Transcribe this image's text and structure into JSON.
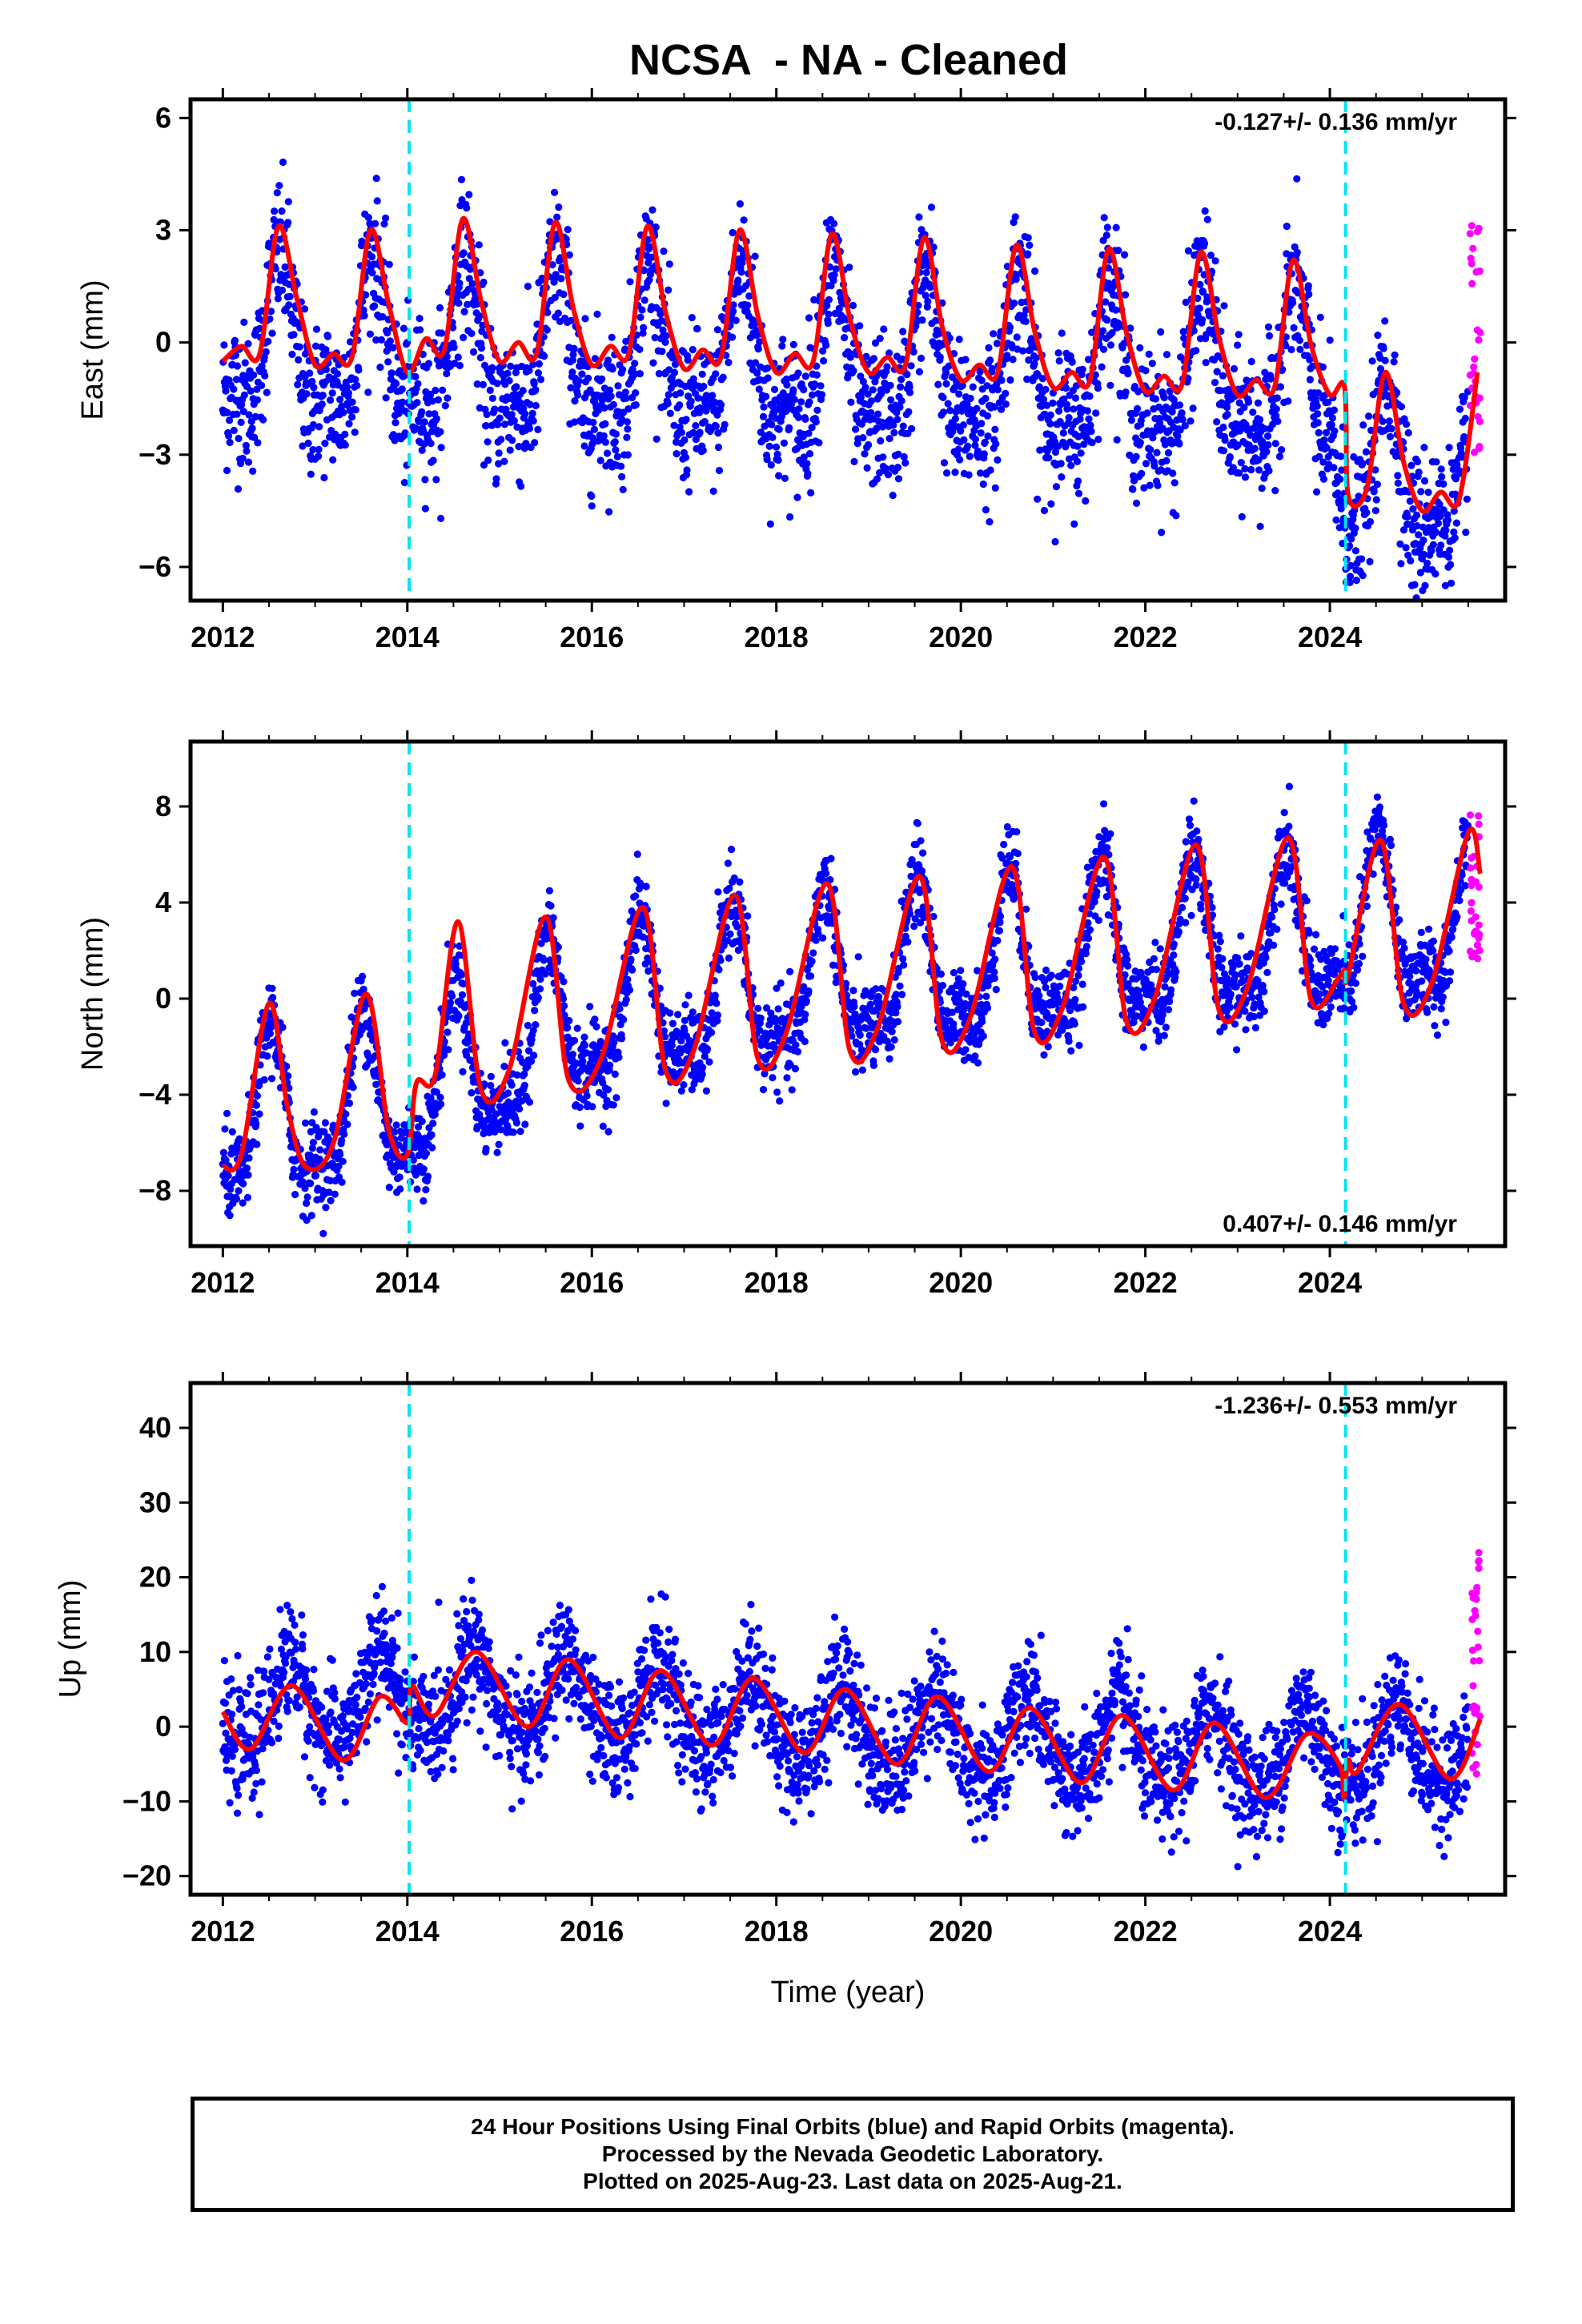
{
  "title": "NCSA  - NA - Cleaned",
  "caption": {
    "line1": "24 Hour Positions Using Final Orbits (blue) and Rapid Orbits (magenta).",
    "line2": "Processed by the Nevada Geodetic Laboratory.",
    "line3": "Plotted on 2025-Aug-23. Last data on 2025-Aug-21."
  },
  "colors": {
    "final_orbits": "#0000ff",
    "rapid_orbits": "#ff00ff",
    "model_fit": "#ff0000",
    "event_lines": "#00e5ee"
  },
  "chart_data": [
    {
      "type": "scatter",
      "ylabel": "East (mm)",
      "xlim": [
        2011.65,
        2025.9
      ],
      "ylim": [
        -6.9,
        6.5
      ],
      "xticks": [
        "2012",
        "2014",
        "2016",
        "2018",
        "2020",
        "2022",
        "2024"
      ],
      "yticks": [
        "6",
        "3",
        "0",
        "−3",
        "−6"
      ],
      "ytick_values": [
        6,
        3,
        0,
        -3,
        -6
      ],
      "annotation": "-0.127+/- 0.136 mm/yr",
      "annotation_position": "top-right",
      "event_lines": [
        2014.02,
        2024.17
      ],
      "model": {
        "name": "model fit",
        "x": [
          2012.0,
          2012.2,
          2012.4,
          2012.6,
          2012.8,
          2013.0,
          2013.2,
          2013.4,
          2013.6,
          2013.8,
          2014.0,
          2014.2,
          2014.4,
          2014.6,
          2014.8,
          2015.0,
          2015.2,
          2015.4,
          2015.6,
          2015.8,
          2016.0,
          2016.2,
          2016.4,
          2016.6,
          2016.8,
          2017.0,
          2017.2,
          2017.4,
          2017.6,
          2017.8,
          2018.0,
          2018.2,
          2018.4,
          2018.6,
          2018.8,
          2019.0,
          2019.2,
          2019.4,
          2019.6,
          2019.8,
          2020.0,
          2020.2,
          2020.4,
          2020.6,
          2020.8,
          2021.0,
          2021.2,
          2021.4,
          2021.6,
          2021.8,
          2022.0,
          2022.2,
          2022.4,
          2022.6,
          2022.8,
          2023.0,
          2023.2,
          2023.4,
          2023.6,
          2023.8,
          2024.0,
          2024.16,
          2024.2,
          2024.4,
          2024.6,
          2024.8,
          2025.0,
          2025.2,
          2025.4,
          2025.6
        ],
        "y": [
          -0.5,
          -0.1,
          -0.3,
          3.1,
          1.2,
          -0.6,
          -0.3,
          -0.4,
          3.0,
          1.0,
          -0.8,
          0.1,
          -0.2,
          3.3,
          1.1,
          -0.5,
          0.0,
          -0.3,
          3.2,
          0.9,
          -0.6,
          -0.1,
          -0.3,
          3.1,
          0.8,
          -0.7,
          -0.2,
          -0.4,
          3.0,
          0.7,
          -0.8,
          -0.3,
          -0.5,
          2.9,
          0.6,
          -0.8,
          -0.4,
          -0.6,
          2.8,
          0.4,
          -1.0,
          -0.6,
          -0.8,
          2.6,
          0.3,
          -1.2,
          -0.8,
          -1.0,
          2.5,
          0.2,
          -1.3,
          -0.9,
          -1.1,
          2.4,
          0.1,
          -1.4,
          -1.0,
          -1.2,
          2.2,
          -0.1,
          -1.4,
          -1.2,
          -4.1,
          -3.9,
          -0.8,
          -3.2,
          -4.5,
          -4.0,
          -4.2,
          -0.8
        ]
      },
      "series": [
        {
          "name": "Final Orbits",
          "color": "#0000ff",
          "x_range": [
            2012.0,
            2025.5
          ],
          "amplitude": 1.85,
          "noise": 1.0,
          "base": [
            [
              2012.0,
              -0.2
            ],
            [
              2024.0,
              -1.2
            ],
            [
              2024.16,
              -3.8
            ],
            [
              2025.6,
              -3.6
            ]
          ],
          "phase": 0.62,
          "secondary": 0.45
        },
        {
          "name": "Rapid Orbits",
          "color": "#ff00ff",
          "x_range": [
            2025.52,
            2025.63
          ],
          "values_range": [
            -3.0,
            3.3
          ]
        }
      ]
    },
    {
      "type": "scatter",
      "ylabel": "North (mm)",
      "xlim": [
        2011.65,
        2025.9
      ],
      "ylim": [
        -10.3,
        10.7
      ],
      "xticks": [
        "2012",
        "2014",
        "2016",
        "2018",
        "2020",
        "2022",
        "2024"
      ],
      "yticks": [
        "8",
        "4",
        "0",
        "−4",
        "−8"
      ],
      "ytick_values": [
        8,
        4,
        0,
        -4,
        -8
      ],
      "annotation": "0.407+/- 0.146 mm/yr",
      "annotation_position": "bottom-right",
      "event_lines": [
        2014.02,
        2024.17
      ],
      "model": {
        "name": "model fit",
        "x": [
          2012.0,
          2012.2,
          2012.5,
          2012.7,
          2012.9,
          2013.2,
          2013.55,
          2013.8,
          2014.0,
          2014.1,
          2014.3,
          2014.55,
          2014.8,
          2015.1,
          2015.5,
          2015.75,
          2016.1,
          2016.55,
          2016.8,
          2017.1,
          2017.55,
          2017.8,
          2018.1,
          2018.55,
          2018.8,
          2019.1,
          2019.55,
          2019.8,
          2020.1,
          2020.55,
          2020.8,
          2021.1,
          2021.55,
          2021.8,
          2022.1,
          2022.55,
          2022.8,
          2023.1,
          2023.55,
          2023.8,
          2024.1,
          2024.16,
          2024.2,
          2024.55,
          2024.8,
          2025.1,
          2025.5,
          2025.63
        ],
        "y": [
          -7.0,
          -6.5,
          -0.2,
          -4.5,
          -7.0,
          -6.0,
          0.2,
          -5.5,
          -6.5,
          -3.5,
          -3.2,
          3.2,
          -3.8,
          -3.0,
          3.4,
          -3.4,
          -2.5,
          3.8,
          -3.0,
          -2.2,
          4.3,
          -2.5,
          -1.5,
          4.8,
          -2.2,
          -1.2,
          5.1,
          -1.8,
          -0.8,
          5.5,
          -1.4,
          -0.4,
          5.9,
          -1.0,
          0.0,
          6.4,
          -0.5,
          0.4,
          6.7,
          -0.1,
          0.9,
          1.2,
          1.0,
          6.6,
          -0.2,
          0.6,
          6.9,
          5.2
        ]
      },
      "series": [
        {
          "name": "Final Orbits",
          "color": "#0000ff",
          "x_range": [
            2012.0,
            2025.5
          ],
          "amplitude": 3.0,
          "noise": 0.9,
          "base": [
            [
              2012.0,
              -5.5
            ],
            [
              2014.0,
              -4.3
            ],
            [
              2016.0,
              -0.8
            ],
            [
              2018.0,
              0.2
            ],
            [
              2020.0,
              1.2
            ],
            [
              2022.0,
              2.0
            ],
            [
              2025.6,
              3.0
            ]
          ],
          "phase": 0.52,
          "secondary": 0.4
        },
        {
          "name": "Rapid Orbits",
          "color": "#ff00ff",
          "x_range": [
            2025.52,
            2025.63
          ],
          "values_range": [
            1.5,
            7.7
          ]
        }
      ]
    },
    {
      "type": "scatter",
      "ylabel": "Up (mm)",
      "xlabel": "Time (year)",
      "xlim": [
        2011.65,
        2025.9
      ],
      "ylim": [
        -22.5,
        46
      ],
      "xticks": [
        "2012",
        "2014",
        "2016",
        "2018",
        "2020",
        "2022",
        "2024"
      ],
      "yticks": [
        "40",
        "30",
        "20",
        "10",
        "0",
        "−10",
        "−20"
      ],
      "ytick_values": [
        40,
        30,
        20,
        10,
        0,
        -10,
        -20
      ],
      "annotation": "-1.236+/- 0.553 mm/yr",
      "annotation_position": "top-right",
      "event_lines": [
        2014.02,
        2024.17
      ],
      "model": {
        "name": "model fit",
        "x": [
          2012.0,
          2012.3,
          2012.75,
          2013.3,
          2013.7,
          2014.0,
          2014.05,
          2014.3,
          2014.75,
          2015.3,
          2015.75,
          2016.3,
          2016.75,
          2017.3,
          2017.75,
          2018.3,
          2018.75,
          2019.3,
          2019.75,
          2020.3,
          2020.75,
          2021.3,
          2021.75,
          2022.3,
          2022.75,
          2023.3,
          2023.75,
          2024.1,
          2024.15,
          2024.2,
          2024.3,
          2024.75,
          2025.3,
          2025.63
        ],
        "y": [
          2.0,
          -3.0,
          5.5,
          -4.5,
          4.0,
          0.5,
          5.5,
          1.5,
          10.0,
          0.0,
          9.0,
          -1.5,
          7.5,
          -2.5,
          6.5,
          -3.5,
          5.0,
          -5.0,
          4.0,
          -6.0,
          2.5,
          -7.5,
          1.5,
          -8.5,
          0.5,
          -9.5,
          -1.0,
          -5.0,
          -9.5,
          -4.5,
          -6.0,
          3.0,
          -7.0,
          1.0
        ]
      },
      "series": [
        {
          "name": "Final Orbits",
          "color": "#0000ff",
          "x_range": [
            2012.0,
            2025.5
          ],
          "amplitude": 5.5,
          "noise": 3.8,
          "base": [
            [
              2012.0,
              1.5
            ],
            [
              2014.5,
              4.5
            ],
            [
              2016.0,
              3.0
            ],
            [
              2020.0,
              -1.5
            ],
            [
              2023.0,
              -4.0
            ],
            [
              2025.6,
              -2.5
            ]
          ],
          "phase": 0.72,
          "secondary": 0.2
        },
        {
          "name": "Rapid Orbits",
          "color": "#ff00ff",
          "x_range": [
            2025.52,
            2025.63
          ],
          "values_range": [
            -7.0,
            23.5
          ]
        }
      ]
    }
  ]
}
